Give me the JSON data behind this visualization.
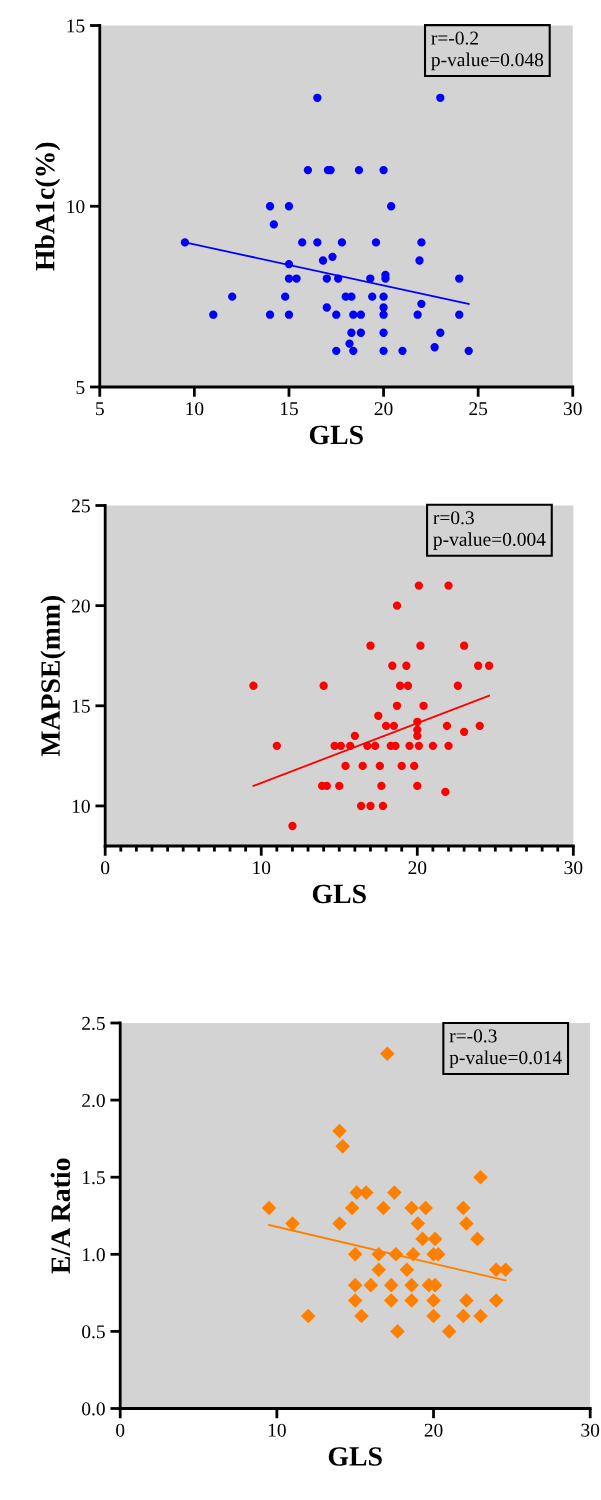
{
  "chart_data": [
    {
      "type": "scatter",
      "xlabel": "GLS",
      "ylabel": "HbA1c(%)",
      "xlim": [
        5,
        30
      ],
      "ylim": [
        5,
        15
      ],
      "xticks": [
        5,
        10,
        15,
        20,
        25,
        30
      ],
      "yticks": [
        5,
        10,
        15
      ],
      "grid": false,
      "legend": false,
      "annotations": [
        "r=-0.2",
        "p-value=0.048"
      ],
      "series": [
        {
          "marker": "circle",
          "color": "#0000ff",
          "x": [
            16.5,
            23,
            16.0,
            17.06,
            17.2,
            18.7,
            20,
            14.0,
            15.0,
            20.4,
            14.2,
            9.5,
            15.7,
            16.5,
            17.8,
            19.6,
            22.0,
            16.8,
            17.3,
            21.9,
            15.0,
            15.0,
            15.4,
            17.0,
            17.6,
            19.3,
            20.1,
            20.1,
            24.0,
            12.0,
            14.8,
            18.0,
            18.3,
            19.4,
            20.0,
            22.0,
            11.0,
            14.0,
            15.0,
            17.0,
            17.5,
            18.4,
            18.8,
            20.0,
            20.0,
            21.8,
            24.0,
            18.3,
            18.8,
            20.0,
            23.0,
            18.2,
            17.5,
            18.4,
            20.0,
            21.0,
            22.7,
            24.5
          ],
          "values": [
            13,
            13,
            11,
            11,
            11,
            11,
            11,
            10,
            10,
            10,
            9.5,
            9,
            9,
            9,
            9,
            9,
            9,
            8.5,
            8.6,
            8.5,
            8.4,
            8,
            8,
            8,
            8,
            8,
            8.1,
            8,
            8,
            7.5,
            7.5,
            7.5,
            7.5,
            7.5,
            7.5,
            7.3,
            7,
            7,
            7,
            7.2,
            7.0,
            7,
            7,
            7.2,
            7,
            7,
            7,
            6.5,
            6.5,
            6.5,
            6.5,
            6.2,
            6,
            6,
            6,
            6,
            6.1,
            6
          ]
        },
        {
          "type": "line",
          "marker": "none",
          "line_style": "solid",
          "color": "#0000ff",
          "x": [
            9.5,
            24.5
          ],
          "values": [
            9.0,
            7.3
          ]
        }
      ]
    },
    {
      "type": "scatter",
      "xlabel": "GLS",
      "ylabel": "MAPSE(mm)",
      "xlim": [
        0,
        30
      ],
      "ylim": [
        8,
        25
      ],
      "xticks": [
        0,
        {
          "value": 1,
          "label": null
        },
        {
          "value": 2,
          "label": null
        },
        {
          "value": 3,
          "label": null
        },
        {
          "value": 4,
          "label": null
        },
        {
          "value": 5,
          "label": null
        },
        {
          "value": 6,
          "label": null
        },
        {
          "value": 7,
          "label": null
        },
        {
          "value": 8,
          "label": null
        },
        {
          "value": 9,
          "label": null
        },
        10,
        {
          "value": 11,
          "label": null
        },
        {
          "value": 12,
          "label": null
        },
        {
          "value": 13,
          "label": null
        },
        {
          "value": 14,
          "label": null
        },
        {
          "value": 15,
          "label": null
        },
        {
          "value": 16,
          "label": null
        },
        {
          "value": 17,
          "label": null
        },
        {
          "value": 18,
          "label": null
        },
        {
          "value": 19,
          "label": null
        },
        20,
        {
          "value": 21,
          "label": null
        },
        {
          "value": 22,
          "label": null
        },
        {
          "value": 23,
          "label": null
        },
        {
          "value": 24,
          "label": null
        },
        {
          "value": 25,
          "label": null
        },
        {
          "value": 26,
          "label": null
        },
        {
          "value": 27,
          "label": null
        },
        {
          "value": 28,
          "label": null
        },
        {
          "value": 29,
          "label": null
        },
        30
      ],
      "yticks": [
        10,
        15,
        20,
        25
      ],
      "grid": false,
      "legend": false,
      "annotations": [
        "r=0.3",
        "p-value=0.004"
      ],
      "series": [
        {
          "marker": "circle",
          "color": "#ff0000",
          "x": [
            20.1,
            22.0,
            18.7,
            17.0,
            20.2,
            23.0,
            18.4,
            19.3,
            23.9,
            24.6,
            9.5,
            14.0,
            18.9,
            19.4,
            22.6,
            18.7,
            20.4,
            17.5,
            18.0,
            18.5,
            20.0,
            20.0,
            20.0,
            21.9,
            23.0,
            24.0,
            16.0,
            11.0,
            14.7,
            15.1,
            15.7,
            16.8,
            17.3,
            18.3,
            18.6,
            19.5,
            20.1,
            21.0,
            22.0,
            15.4,
            16.5,
            17.6,
            19.0,
            19.8,
            13.9,
            14.2,
            15.0,
            17.7,
            20.0,
            21.8,
            16.4,
            17.0,
            17.8,
            12.0
          ],
          "values": [
            21,
            21,
            20,
            18,
            18,
            18,
            17,
            17,
            17,
            17,
            16,
            16,
            16,
            16,
            16,
            15,
            15,
            14.5,
            14,
            14,
            14.2,
            13.8,
            13.5,
            14,
            13.7,
            14,
            13.5,
            13,
            13,
            13,
            13,
            13,
            13,
            13,
            13,
            13,
            13,
            13,
            13,
            12,
            12,
            12,
            12,
            12,
            11,
            11,
            11,
            11,
            11,
            10.7,
            10,
            10,
            10,
            9
          ]
        },
        {
          "type": "line",
          "marker": "none",
          "line_style": "solid",
          "color": "#ff0000",
          "x": [
            9.5,
            24.6
          ],
          "values": [
            11.0,
            15.5
          ]
        }
      ]
    },
    {
      "type": "scatter",
      "xlabel": "GLS",
      "ylabel": "E/A Ratio",
      "xlim": [
        0,
        30
      ],
      "ylim": [
        0.0,
        2.5
      ],
      "xticks": [
        0,
        10,
        20,
        30
      ],
      "yticks": [
        {
          "value": 0,
          "label": "0.0"
        },
        0.5,
        {
          "value": 1,
          "label": "1.0"
        },
        1.5,
        {
          "value": 2,
          "label": "2.0"
        },
        2.5
      ],
      "grid": false,
      "legend": false,
      "annotations": [
        "r=-0.3",
        "p-value=0.014"
      ],
      "series": [
        {
          "marker": "diamond",
          "color": "#ff8000",
          "x": [
            17.05,
            14.0,
            14.2,
            23.0,
            15.1,
            15.7,
            17.5,
            9.5,
            14.8,
            16.8,
            18.6,
            19.5,
            21.9,
            11.0,
            14.0,
            19.0,
            22.1,
            19.3,
            20.1,
            22.8,
            15.0,
            16.5,
            17.6,
            18.7,
            20.0,
            20.3,
            16.5,
            18.3,
            24.0,
            24.6,
            15.0,
            16.0,
            17.3,
            18.6,
            19.7,
            20.1,
            15.0,
            17.3,
            18.6,
            20.0,
            22.1,
            24.0,
            12.0,
            15.4,
            20.0,
            21.9,
            23.0,
            17.7,
            21.0
          ],
          "values": [
            2.3,
            1.8,
            1.7,
            1.5,
            1.4,
            1.4,
            1.4,
            1.3,
            1.3,
            1.3,
            1.3,
            1.3,
            1.3,
            1.2,
            1.2,
            1.2,
            1.2,
            1.1,
            1.1,
            1.1,
            1.0,
            1.0,
            1.0,
            1.0,
            1.0,
            1.0,
            0.9,
            0.9,
            0.9,
            0.9,
            0.8,
            0.8,
            0.8,
            0.8,
            0.8,
            0.8,
            0.7,
            0.7,
            0.7,
            0.7,
            0.7,
            0.7,
            0.6,
            0.6,
            0.6,
            0.6,
            0.6,
            0.5,
            0.5
          ]
        },
        {
          "type": "line",
          "marker": "none",
          "line_style": "solid",
          "color": "#ff8000",
          "x": [
            9.5,
            24.6
          ],
          "values": [
            1.19,
            0.83
          ]
        }
      ]
    }
  ]
}
